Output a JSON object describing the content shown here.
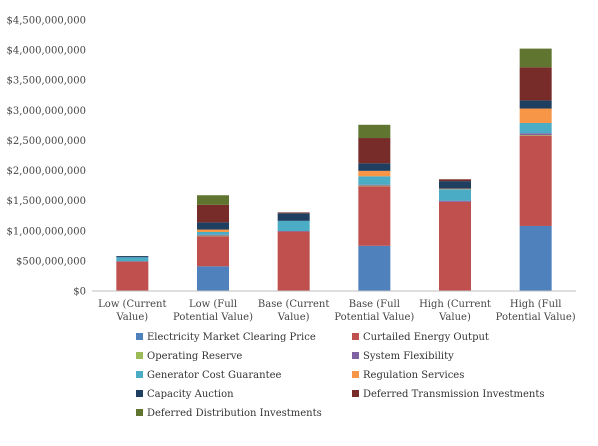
{
  "chart_data": {
    "type": "bar",
    "stacked": true,
    "title": "",
    "xlabel": "",
    "ylabel": "",
    "ylim": [
      0,
      4500000000
    ],
    "yticks": [
      0,
      500000000,
      1000000000,
      1500000000,
      2000000000,
      2500000000,
      3000000000,
      3500000000,
      4000000000,
      4500000000
    ],
    "ytick_labels": [
      "$0",
      "$500,000,000",
      "$1,000,000,000",
      "$1,500,000,000",
      "$2,000,000,000",
      "$2,500,000,000",
      "$3,000,000,000",
      "$3,500,000,000",
      "$4,000,000,000",
      "$4,500,000,000"
    ],
    "categories": [
      [
        "Low (Current",
        "Value)"
      ],
      [
        "Low (Full",
        "Potential Value)"
      ],
      [
        "Base (Current",
        "Value)"
      ],
      [
        "Base (Full",
        "Potential Value)"
      ],
      [
        "High (Current",
        "Value)"
      ],
      [
        "High (Full",
        "Potential Value)"
      ]
    ],
    "grid": false,
    "legend_position": "bottom",
    "series": [
      {
        "name": "Electricity Market Clearing Price",
        "color": "#4f81bd",
        "values": [
          0,
          410000000,
          0,
          750000000,
          0,
          1080000000
        ]
      },
      {
        "name": "Curtailed Energy Output",
        "color": "#c0504d",
        "values": [
          490000000,
          500000000,
          990000000,
          990000000,
          1480000000,
          1500000000
        ]
      },
      {
        "name": "Operating Reserve",
        "color": "#9bbb59",
        "values": [
          0,
          10000000,
          0,
          10000000,
          0,
          10000000
        ]
      },
      {
        "name": "System Flexibility",
        "color": "#8064a2",
        "values": [
          5000000,
          15000000,
          5000000,
          15000000,
          20000000,
          30000000
        ]
      },
      {
        "name": "Generator Cost Guarantee",
        "color": "#4bacc6",
        "values": [
          65000000,
          45000000,
          170000000,
          140000000,
          190000000,
          170000000
        ]
      },
      {
        "name": "Regulation Services",
        "color": "#f79646",
        "values": [
          0,
          40000000,
          0,
          90000000,
          10000000,
          240000000
        ]
      },
      {
        "name": "Capacity Auction",
        "color": "#1f3f61",
        "values": [
          20000000,
          120000000,
          125000000,
          125000000,
          125000000,
          135000000
        ]
      },
      {
        "name": "Deferred Transmission Investments",
        "color": "#772c2a",
        "values": [
          0,
          290000000,
          15000000,
          420000000,
          30000000,
          550000000
        ]
      },
      {
        "name": "Deferred Distribution Investments",
        "color": "#5f7530",
        "values": [
          0,
          160000000,
          0,
          220000000,
          0,
          310000000
        ]
      }
    ]
  }
}
